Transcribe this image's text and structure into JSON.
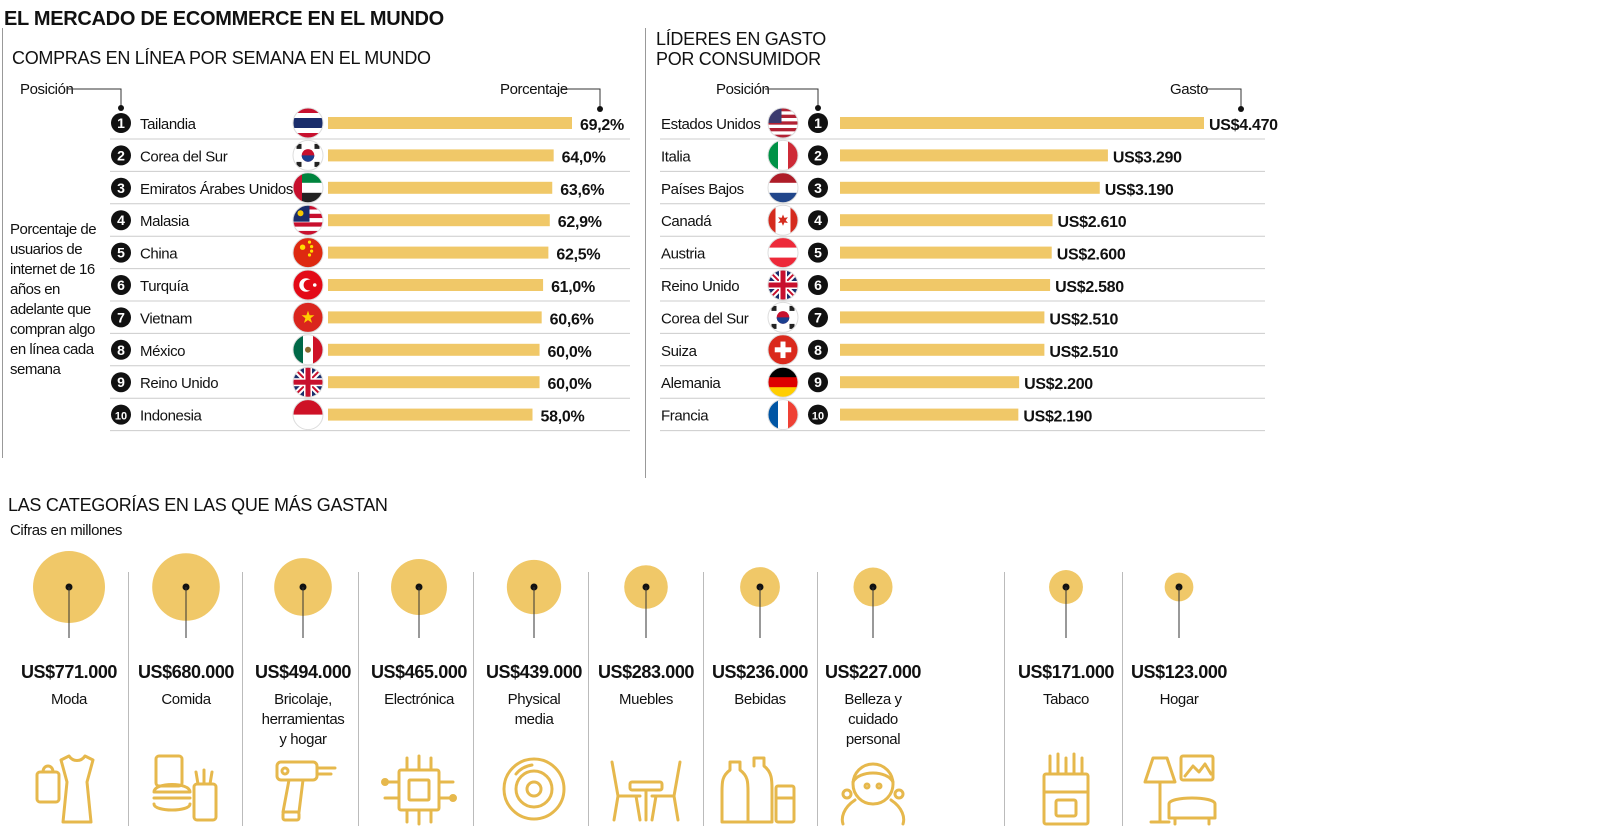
{
  "title": "EL MERCADO DE ECOMMERCE EN EL MUNDO",
  "left": {
    "title": "COMPRAS EN LÍNEA POR SEMANA EN EL MUNDO",
    "position_label": "Posición",
    "value_label": "Porcentaje",
    "note": "Porcentaje de usuarios de internet de 16 años en adelante que compran algo en línea cada semana"
  },
  "right": {
    "title_line1": "LÍDERES EN GASTO",
    "title_line2": "POR CONSUMIDOR",
    "position_label": "Posición",
    "value_label": "Gasto"
  },
  "categories_section": {
    "title": "LAS CATEGORÍAS EN LAS QUE MÁS GASTAN",
    "subtitle": "Cifras en millones"
  },
  "colors": {
    "bar": "#f0c868",
    "badge": "#111111",
    "rule": "#cccccc"
  },
  "chart_data": [
    {
      "type": "bar",
      "title": "COMPRAS EN LÍNEA POR SEMANA EN EL MUNDO",
      "orientation": "horizontal",
      "categories": [
        "Tailandia",
        "Corea del Sur",
        "Emiratos Árabes Unidos",
        "Malasia",
        "China",
        "Turquía",
        "Vietnam",
        "México",
        "Reino Unido",
        "Indonesia"
      ],
      "ranks": [
        "1",
        "2",
        "3",
        "4",
        "5",
        "6",
        "7",
        "8",
        "9",
        "10"
      ],
      "values": [
        69.2,
        64.0,
        63.6,
        62.9,
        62.5,
        61.0,
        60.6,
        60.0,
        60.0,
        58.0
      ],
      "value_labels": [
        "69,2%",
        "64,0%",
        "63,6%",
        "62,9%",
        "62,5%",
        "61,0%",
        "60,6%",
        "60,0%",
        "60,0%",
        "58,0%"
      ],
      "flag_icons": [
        "thailand-flag-icon",
        "south-korea-flag-icon",
        "uae-flag-icon",
        "malaysia-flag-icon",
        "china-flag-icon",
        "turkey-flag-icon",
        "vietnam-flag-icon",
        "mexico-flag-icon",
        "uk-flag-icon",
        "indonesia-flag-icon"
      ],
      "xlim": [
        0,
        69.2
      ]
    },
    {
      "type": "bar",
      "title": "LÍDERES EN GASTO POR CONSUMIDOR",
      "orientation": "horizontal",
      "categories": [
        "Estados Unidos",
        "Italia",
        "Países Bajos",
        "Canadá",
        "Austria",
        "Reino Unido",
        "Corea del Sur",
        "Suiza",
        "Alemania",
        "Francia"
      ],
      "ranks": [
        "1",
        "2",
        "3",
        "4",
        "5",
        "6",
        "7",
        "8",
        "9",
        "10"
      ],
      "values": [
        4470,
        3290,
        3190,
        2610,
        2600,
        2580,
        2510,
        2510,
        2200,
        2190
      ],
      "value_labels": [
        "US$4.470",
        "US$3.290",
        "US$3.190",
        "US$2.610",
        "US$2.600",
        "US$2.580",
        "US$2.510",
        "US$2.510",
        "US$2.200",
        "US$2.190"
      ],
      "flag_icons": [
        "usa-flag-icon",
        "italy-flag-icon",
        "netherlands-flag-icon",
        "canada-flag-icon",
        "austria-flag-icon",
        "uk-flag-icon",
        "south-korea-flag-icon",
        "switzerland-flag-icon",
        "germany-flag-icon",
        "france-flag-icon"
      ],
      "xlim": [
        0,
        4470
      ]
    },
    {
      "type": "bubble",
      "title": "LAS CATEGORÍAS EN LAS QUE MÁS GASTAN",
      "subtitle": "Cifras en millones",
      "categories": [
        "Moda",
        "Comida",
        "Bricolaje, herramientas y hogar",
        "Electrónica",
        "Physical media",
        "Muebles",
        "Bebidas",
        "Belleza y cuidado personal",
        "Tabaco",
        "Hogar"
      ],
      "label_lines": [
        "Moda",
        "Comida",
        "Bricolaje,\nherramientas\ny hogar",
        "Electrónica",
        "Physical\nmedia",
        "Muebles",
        "Bebidas",
        "Belleza y\ncuidado\npersonal",
        "Tabaco",
        "Hogar"
      ],
      "values": [
        771000,
        680000,
        494000,
        465000,
        439000,
        283000,
        236000,
        227000,
        171000,
        123000
      ],
      "value_labels": [
        "US$771.000",
        "US$680.000",
        "US$494.000",
        "US$465.000",
        "US$439.000",
        "US$283.000",
        "US$236.000",
        "US$227.000",
        "US$171.000",
        "US$123.000"
      ],
      "icons": [
        "clothing-icon",
        "fast-food-icon",
        "drill-icon",
        "circuit-chip-icon",
        "disc-icon",
        "furniture-icon",
        "bottles-icon",
        "face-care-icon",
        "cigarettes-icon",
        "home-decor-icon"
      ]
    }
  ]
}
